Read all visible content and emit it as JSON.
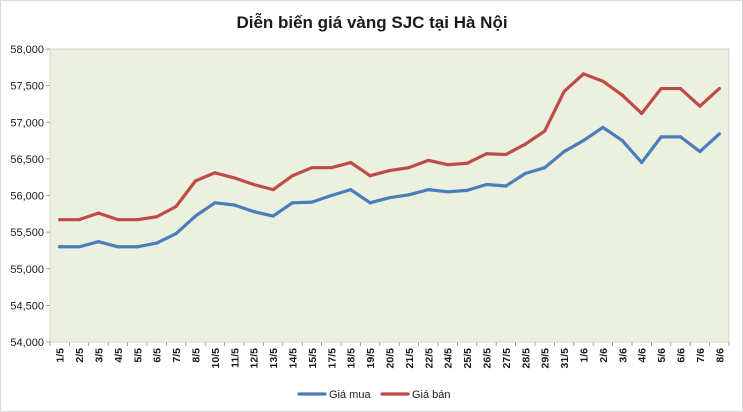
{
  "chart_data": {
    "type": "line",
    "title": "Diễn biến giá vàng SJC tại Hà Nội",
    "xlabel": "",
    "ylabel": "",
    "ylim": [
      54000,
      58000
    ],
    "ytick_step": 500,
    "ytick_labels": [
      "54,000",
      "54,500",
      "55,000",
      "55,500",
      "56,000",
      "56,500",
      "57,000",
      "57,500",
      "58,000"
    ],
    "categories": [
      "1/5",
      "2/5",
      "3/5",
      "4/5",
      "5/5",
      "6/5",
      "7/5",
      "8/5",
      "10/5",
      "11/5",
      "12/5",
      "13/5",
      "14/5",
      "15/5",
      "17/5",
      "18/5",
      "19/5",
      "20/5",
      "21/5",
      "22/5",
      "24/5",
      "25/5",
      "26/5",
      "27/5",
      "28/5",
      "29/5",
      "31/5",
      "1/6",
      "2/6",
      "3/6",
      "4/6",
      "5/6",
      "6/6",
      "7/6",
      "8/6"
    ],
    "series": [
      {
        "name": "Giá mua",
        "color": "#4a7ebb",
        "values": [
          55300,
          55300,
          55370,
          55300,
          55300,
          55350,
          55480,
          55720,
          55900,
          55870,
          55780,
          55720,
          55900,
          55910,
          56000,
          56080,
          55900,
          55970,
          56010,
          56080,
          56050,
          56070,
          56150,
          56130,
          56300,
          56380,
          56600,
          56750,
          56930,
          56750,
          56450,
          56800,
          56800,
          56600,
          56840
        ]
      },
      {
        "name": "Giá bán",
        "color": "#be4b48",
        "values": [
          55670,
          55670,
          55760,
          55670,
          55670,
          55710,
          55850,
          56200,
          56310,
          56240,
          56150,
          56080,
          56270,
          56380,
          56380,
          56450,
          56270,
          56340,
          56380,
          56480,
          56420,
          56440,
          56570,
          56560,
          56700,
          56880,
          57420,
          57660,
          57560,
          57370,
          57120,
          57460,
          57460,
          57220,
          57460
        ]
      }
    ],
    "legend": {
      "position": "bottom",
      "items": [
        "Giá mua",
        "Giá bán"
      ]
    },
    "plot_background": "#ebf1de",
    "grid": false
  }
}
